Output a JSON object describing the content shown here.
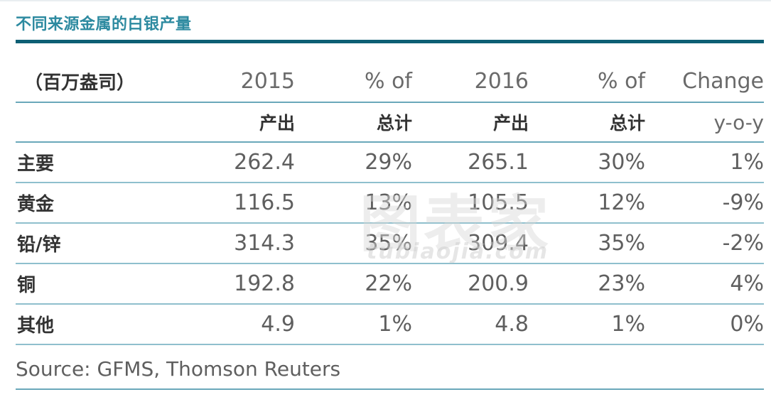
{
  "title": "不同来源金属的白银产量",
  "chart_data": {
    "type": "table",
    "title": "不同来源金属的白银产量",
    "unit_label": "（百万盎司）",
    "columns": [
      {
        "top": "2015",
        "bottom": "产出"
      },
      {
        "top": "% of",
        "bottom": "总计"
      },
      {
        "top": "2016",
        "bottom": "产出"
      },
      {
        "top": "% of",
        "bottom": "总计"
      },
      {
        "top": "Change",
        "bottom": "y-o-y"
      }
    ],
    "rows": [
      {
        "label": "主要",
        "values": [
          "262.4",
          "29%",
          "265.1",
          "30%",
          "1%"
        ]
      },
      {
        "label": "黄金",
        "values": [
          "116.5",
          "13%",
          "105.5",
          "12%",
          "-9%"
        ]
      },
      {
        "label": "铅/锌",
        "values": [
          "314.3",
          "35%",
          "309.4",
          "35%",
          "-2%"
        ]
      },
      {
        "label": "铜",
        "values": [
          "192.8",
          "22%",
          "200.9",
          "23%",
          "4%"
        ]
      },
      {
        "label": "其他",
        "values": [
          "4.9",
          "1%",
          "4.8",
          "1%",
          "0%"
        ]
      }
    ],
    "source": "Source: GFMS, Thomson Reuters"
  },
  "watermark": {
    "chars": "图表家",
    "url": "tubiaojia.com"
  }
}
